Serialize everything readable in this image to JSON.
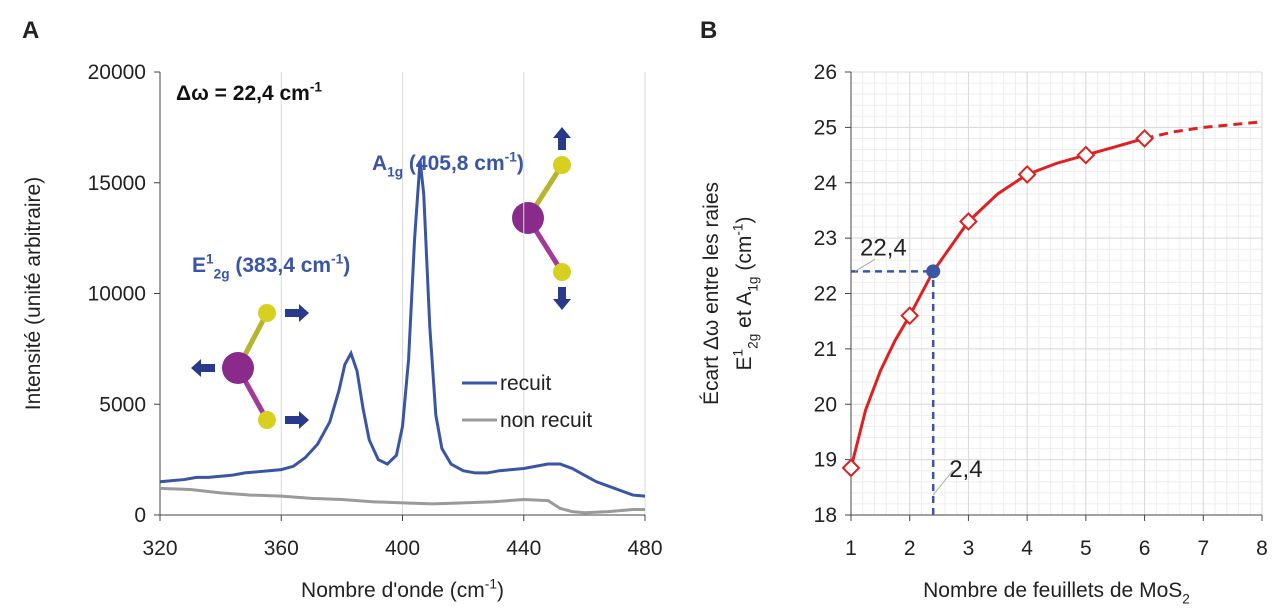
{
  "chart_data": [
    {
      "type": "line",
      "panel": "A",
      "annotations": [
        [
          {
            "text": "Δω = 22,4 cm"
          },
          {
            "text": "-1",
            "pos": "sup"
          }
        ],
        [
          {
            "text": "A"
          },
          {
            "text": "1g",
            "pos": "sub"
          },
          {
            "text": " (405,8 cm"
          },
          {
            "text": "-1",
            "pos": "sup"
          },
          {
            "text": ")"
          }
        ],
        [
          {
            "text": "E"
          },
          {
            "text": "1",
            "pos": "sup"
          },
          {
            "text": "2g",
            "pos": "sub"
          },
          {
            "text": " (383,4 cm"
          },
          {
            "text": "-1",
            "pos": "sup"
          },
          {
            "text": ")"
          }
        ]
      ],
      "xlabel": [
        {
          "text": "Nombre d'onde (cm"
        },
        {
          "text": "-1",
          "pos": "sup"
        },
        {
          "text": ")"
        }
      ],
      "ylabel": "Intensité (unité arbitraire)",
      "xlim": [
        320,
        480
      ],
      "xticks": [
        320,
        360,
        400,
        440,
        480
      ],
      "ylim": [
        0,
        20000
      ],
      "yticks": [
        0,
        5000,
        10000,
        15000,
        20000
      ],
      "grid": "x",
      "series": [
        {
          "name": "recuit",
          "color": "#3a55a4",
          "x": [
            320,
            324,
            328,
            332,
            336,
            340,
            344,
            348,
            352,
            356,
            360,
            364,
            368,
            372,
            376,
            379,
            381,
            383,
            385,
            387,
            389,
            392,
            395,
            398,
            400,
            402,
            404,
            405.8,
            407,
            409,
            411,
            413,
            416,
            420,
            424,
            428,
            432,
            436,
            440,
            444,
            448,
            452,
            456,
            460,
            464,
            468,
            472,
            476,
            480
          ],
          "values": [
            1500,
            1550,
            1600,
            1700,
            1700,
            1750,
            1800,
            1900,
            1950,
            2000,
            2050,
            2200,
            2600,
            3200,
            4200,
            5600,
            6800,
            7300,
            6500,
            4800,
            3400,
            2500,
            2300,
            2700,
            4000,
            7000,
            12500,
            16000,
            14500,
            8500,
            4500,
            3000,
            2300,
            2000,
            1900,
            1900,
            2000,
            2050,
            2100,
            2200,
            2300,
            2300,
            2100,
            1800,
            1500,
            1300,
            1100,
            900,
            850
          ]
        },
        {
          "name": "non recuit",
          "color": "#9a9a9a",
          "x": [
            320,
            330,
            340,
            350,
            360,
            370,
            380,
            390,
            400,
            410,
            420,
            430,
            440,
            448,
            452,
            456,
            460,
            468,
            476,
            480
          ],
          "values": [
            1200,
            1150,
            1000,
            900,
            850,
            750,
            700,
            600,
            550,
            500,
            550,
            600,
            700,
            650,
            300,
            150,
            100,
            150,
            250,
            250
          ]
        }
      ]
    },
    {
      "type": "line",
      "panel": "B",
      "xlabel": [
        {
          "text": "Nombre de feuillets de MoS"
        },
        {
          "text": "2",
          "pos": "sub"
        }
      ],
      "ylabel": [
        [
          {
            "text": "Écart Δω entre les raies"
          }
        ],
        [
          {
            "text": "E"
          },
          {
            "text": "1",
            "pos": "sup"
          },
          {
            "text": "2g",
            "pos": "sub"
          },
          {
            "text": " et A"
          },
          {
            "text": "1g",
            "pos": "sub"
          },
          {
            "text": " (cm"
          },
          {
            "text": "-1",
            "pos": "sup"
          },
          {
            "text": ")"
          }
        ]
      ],
      "xlim": [
        1,
        8
      ],
      "xticks": [
        1,
        2,
        3,
        4,
        5,
        6,
        7,
        8
      ],
      "ylim": [
        18,
        26
      ],
      "yticks": [
        18,
        19,
        20,
        21,
        22,
        23,
        24,
        25,
        26
      ],
      "grid": "xy",
      "series": [
        {
          "color": "#e02020",
          "x": [
            1,
            1.25,
            1.5,
            1.75,
            2,
            2.4,
            3,
            3.5,
            4,
            4.5,
            5,
            5.5,
            6
          ],
          "values": [
            18.85,
            19.9,
            20.6,
            21.15,
            21.6,
            22.4,
            23.3,
            23.8,
            24.15,
            24.35,
            24.5,
            24.65,
            24.8
          ],
          "dash": false
        },
        {
          "color": "#e02020",
          "x": [
            6,
            6.5,
            7,
            7.5,
            8
          ],
          "values": [
            24.8,
            24.92,
            25.0,
            25.05,
            25.1
          ],
          "dash": true
        },
        {
          "color": "#e02020",
          "x": [
            1,
            2,
            3,
            4,
            5,
            6
          ],
          "values": [
            18.85,
            21.6,
            23.3,
            24.15,
            24.5,
            24.8
          ],
          "marker": "diamond"
        }
      ],
      "highlight": {
        "x": 2.4,
        "y": 22.4,
        "x_label": "2,4",
        "y_label": "22,4",
        "color": "#3a55a4"
      }
    }
  ]
}
